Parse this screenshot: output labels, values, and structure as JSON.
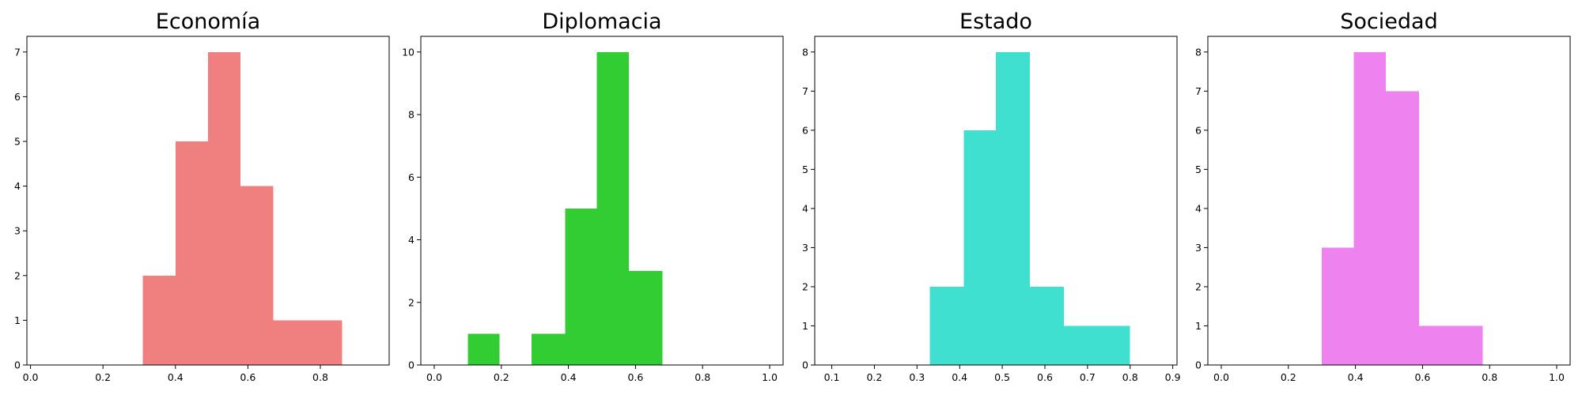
{
  "chart_data": [
    {
      "type": "histogram",
      "title": "Economía",
      "color": "#f08080",
      "xlim": [
        -0.01,
        0.99
      ],
      "ylim": [
        0,
        7.35
      ],
      "xticks": [
        0.0,
        0.2,
        0.4,
        0.6,
        0.8
      ],
      "xtick_labels": [
        "0.0",
        "0.2",
        "0.4",
        "0.6",
        "0.8"
      ],
      "yticks": [
        0,
        1,
        2,
        3,
        4,
        5,
        6,
        7
      ],
      "ytick_labels": [
        "0",
        "1",
        "2",
        "3",
        "4",
        "5",
        "6",
        "7"
      ],
      "bins": [
        0.31,
        0.4,
        0.49,
        0.58,
        0.67,
        0.76,
        0.86
      ],
      "counts": [
        2,
        5,
        7,
        4,
        1,
        1
      ]
    },
    {
      "type": "histogram",
      "title": "Diplomacia",
      "color": "#32cd32",
      "xlim": [
        -0.04,
        1.04
      ],
      "ylim": [
        0,
        10.5
      ],
      "xticks": [
        0.0,
        0.2,
        0.4,
        0.6,
        0.8,
        1.0
      ],
      "xtick_labels": [
        "0.0",
        "0.2",
        "0.4",
        "0.6",
        "0.8",
        "1.0"
      ],
      "yticks": [
        0,
        2,
        4,
        6,
        8,
        10
      ],
      "ytick_labels": [
        "0",
        "2",
        "4",
        "6",
        "8",
        "10"
      ],
      "bins": [
        0.1,
        0.195,
        0.29,
        0.39,
        0.485,
        0.58,
        0.68
      ],
      "counts": [
        1,
        0,
        1,
        5,
        10,
        3
      ]
    },
    {
      "type": "histogram",
      "title": "Estado",
      "color": "#40e0d0",
      "xlim": [
        0.06,
        0.91
      ],
      "ylim": [
        0,
        8.4
      ],
      "xticks": [
        0.1,
        0.2,
        0.3,
        0.4,
        0.5,
        0.6,
        0.7,
        0.8,
        0.9
      ],
      "xtick_labels": [
        "0.1",
        "0.2",
        "0.3",
        "0.4",
        "0.5",
        "0.6",
        "0.7",
        "0.8",
        "0.9"
      ],
      "yticks": [
        0,
        1,
        2,
        3,
        4,
        5,
        6,
        7,
        8
      ],
      "ytick_labels": [
        "0",
        "1",
        "2",
        "3",
        "4",
        "5",
        "6",
        "7",
        "8"
      ],
      "bins": [
        0.33,
        0.41,
        0.485,
        0.565,
        0.645,
        0.725,
        0.8
      ],
      "counts": [
        2,
        6,
        8,
        2,
        1,
        1
      ]
    },
    {
      "type": "histogram",
      "title": "Sociedad",
      "color": "#ee82ee",
      "xlim": [
        -0.04,
        1.04
      ],
      "ylim": [
        0,
        8.4
      ],
      "xticks": [
        0.0,
        0.2,
        0.4,
        0.6,
        0.8,
        1.0
      ],
      "xtick_labels": [
        "0.0",
        "0.2",
        "0.4",
        "0.6",
        "0.8",
        "1.0"
      ],
      "yticks": [
        0,
        1,
        2,
        3,
        4,
        5,
        6,
        7,
        8
      ],
      "ytick_labels": [
        "0",
        "1",
        "2",
        "3",
        "4",
        "5",
        "6",
        "7",
        "8"
      ],
      "bins": [
        0.3,
        0.395,
        0.49,
        0.59,
        0.685,
        0.78
      ],
      "counts": [
        3,
        8,
        7,
        1,
        1
      ]
    }
  ]
}
